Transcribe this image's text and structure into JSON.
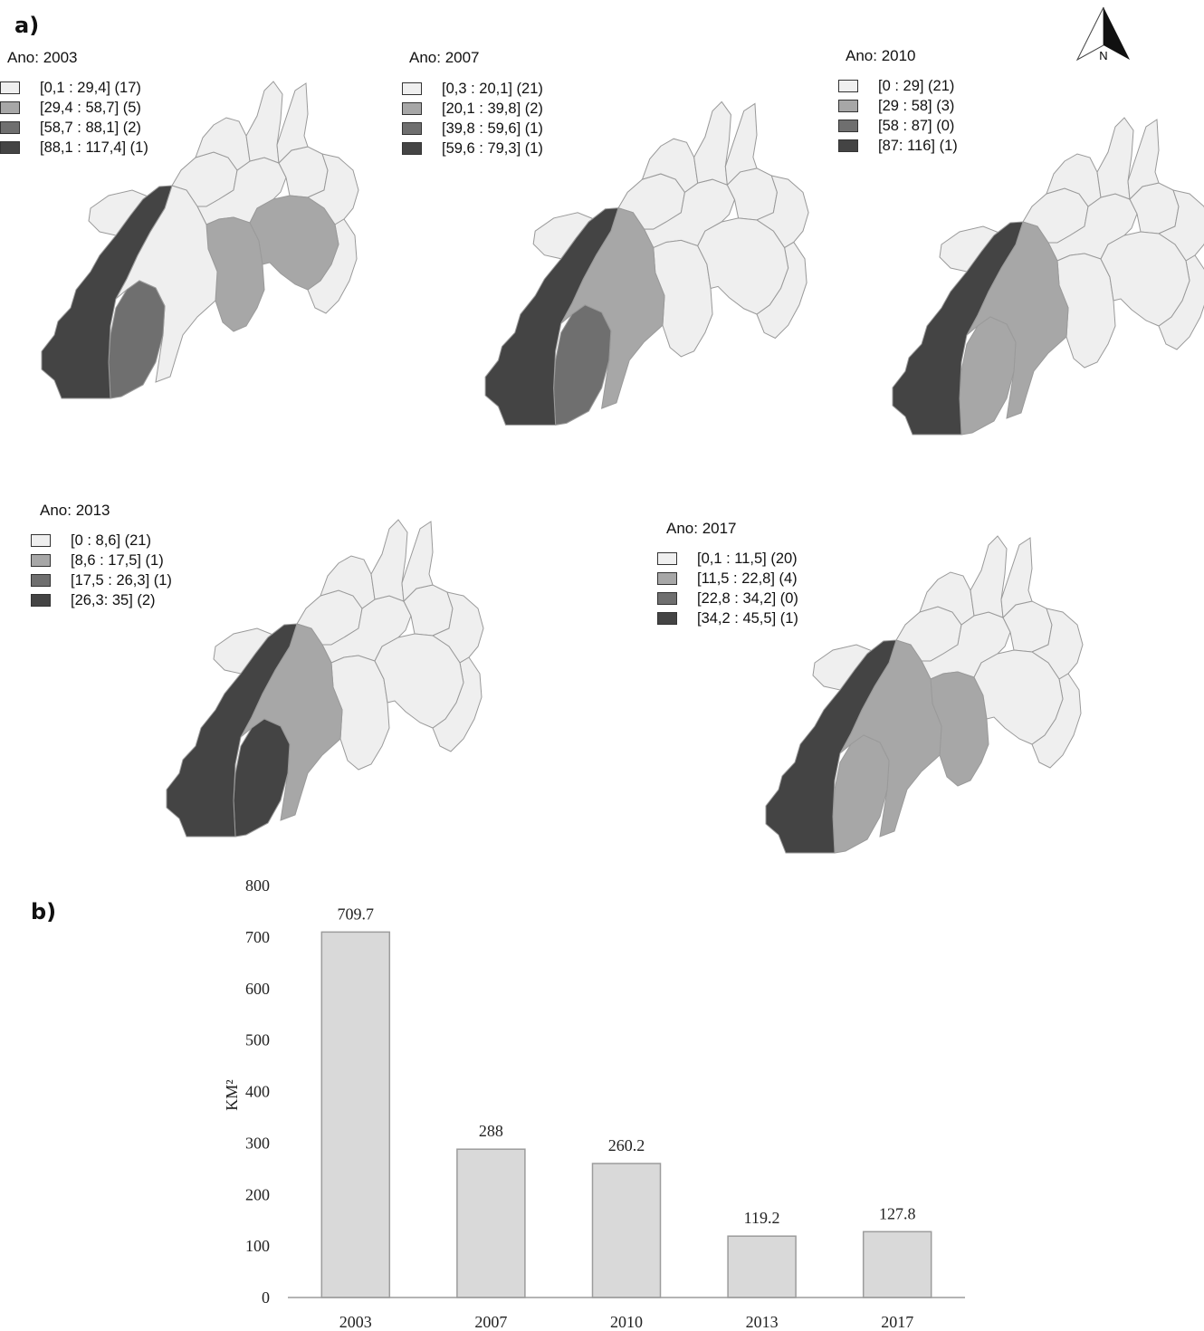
{
  "panel_a_label": "a)",
  "panel_b_label": "b)",
  "north_label": "N",
  "shade_colors": [
    "#efefef",
    "#a7a7a7",
    "#6f6f6f",
    "#444444"
  ],
  "maps": [
    {
      "title": "Ano: 2003",
      "legend": [
        "[0,1 : 29,4] (17)",
        "[29,4 : 58,7] (5)",
        "[58,7 : 88,1] (2)",
        "[88,1 : 117,4] (1)"
      ],
      "shading": {
        "sw_big": 3,
        "sw_mid": 2,
        "center": 0,
        "east": 1,
        "ne": 1
      }
    },
    {
      "title": "Ano: 2007",
      "legend": [
        "[0,3 : 20,1] (21)",
        "[20,1 : 39,8] (2)",
        "[39,8 : 59,6] (1)",
        "[59,6 : 79,3] (1)"
      ],
      "shading": {
        "sw_big": 3,
        "sw_mid": 2,
        "center": 1,
        "east": 0,
        "ne": 0
      }
    },
    {
      "title": "Ano: 2010",
      "legend": [
        "[0 : 29] (21)",
        "[29 : 58] (3)",
        "[58 : 87] (0)",
        "[87: 116] (1)"
      ],
      "shading": {
        "sw_big": 3,
        "sw_mid": 1,
        "center": 1,
        "east": 0,
        "ne": 0
      }
    },
    {
      "title": "Ano: 2013",
      "legend": [
        "[0 : 8,6] (21)",
        "[8,6 : 17,5] (1)",
        "[17,5 : 26,3] (1)",
        "[26,3: 35] (2)"
      ],
      "shading": {
        "sw_big": 3,
        "sw_mid": 3,
        "center": 1,
        "east": 0,
        "ne": 0
      }
    },
    {
      "title": "Ano: 2017",
      "legend": [
        "[0,1 : 11,5] (20)",
        "[11,5 : 22,8] (4)",
        "[22,8 : 34,2] (0)",
        "[34,2 : 45,5] (1)"
      ],
      "shading": {
        "sw_big": 3,
        "sw_mid": 1,
        "center": 1,
        "east": 1,
        "ne": 0
      }
    }
  ],
  "chart_data": {
    "type": "bar",
    "categories": [
      "2003",
      "2007",
      "2010",
      "2013",
      "2017"
    ],
    "values": [
      709.7,
      288,
      260.2,
      119.2,
      127.8
    ],
    "data_labels": [
      "709.7",
      "288",
      "260.2",
      "119.2",
      "127.8"
    ],
    "ylabel": "KM²",
    "ylim": [
      0,
      800
    ],
    "yticks": [
      0,
      100,
      200,
      300,
      400,
      500,
      600,
      700,
      800
    ],
    "bar_color": "#d9d9d9",
    "grid": false
  }
}
